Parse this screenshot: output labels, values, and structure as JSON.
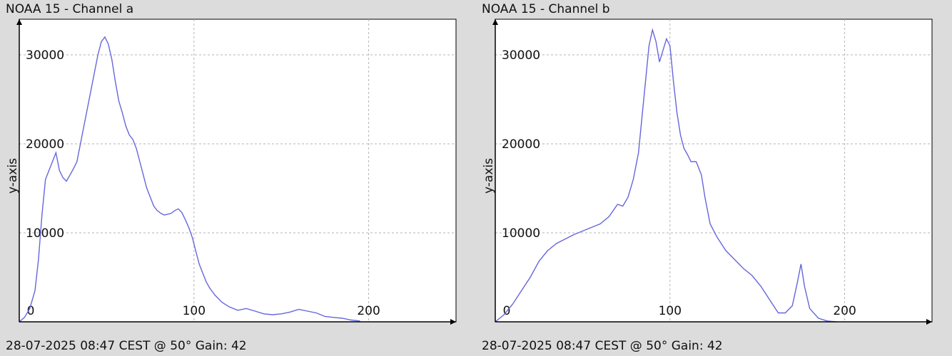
{
  "chart_data": [
    {
      "type": "line",
      "title": "NOAA 15 - Channel a",
      "footer": "28-07-2025 08:47 CEST @ 50° Gain: 42",
      "xlabel": "",
      "ylabel": "y-axis",
      "xlim": [
        0,
        250
      ],
      "ylim": [
        0,
        34000
      ],
      "xticks": [
        0,
        100,
        200
      ],
      "xtick_labels": [
        "0",
        "100",
        "200"
      ],
      "yticks": [
        10000,
        20000,
        30000
      ],
      "ytick_labels": [
        "10000",
        "20000",
        "30000"
      ],
      "grid": true,
      "line_color": "#6666dd",
      "series": [
        {
          "x": [
            0,
            3,
            6,
            9,
            11,
            13,
            15,
            17,
            19,
            21,
            23,
            25,
            27,
            29,
            31,
            33,
            35,
            37,
            39,
            41,
            43,
            45,
            47,
            49,
            51,
            53,
            55,
            57,
            59,
            61,
            63,
            65,
            67,
            69,
            71,
            73,
            75,
            77,
            79,
            81,
            83,
            85,
            87,
            89,
            91,
            93,
            95,
            97,
            99,
            101,
            103,
            105,
            107,
            109,
            112,
            116,
            120,
            125,
            130,
            135,
            140,
            145,
            150,
            155,
            160,
            165,
            170,
            175,
            180,
            185,
            190,
            195
          ],
          "y": [
            0,
            500,
            1500,
            3500,
            7000,
            12000,
            16000,
            17000,
            18000,
            19000,
            17000,
            16200,
            15800,
            16500,
            17200,
            18000,
            20000,
            22000,
            24000,
            26000,
            28000,
            30000,
            31500,
            32000,
            31200,
            29500,
            27000,
            24800,
            23500,
            22000,
            21000,
            20500,
            19500,
            18000,
            16500,
            15000,
            14000,
            13000,
            12500,
            12200,
            12000,
            12100,
            12200,
            12500,
            12700,
            12300,
            11500,
            10600,
            9500,
            8000,
            6500,
            5500,
            4500,
            3800,
            3000,
            2200,
            1700,
            1300,
            1500,
            1200,
            900,
            800,
            900,
            1100,
            1400,
            1200,
            1000,
            600,
            500,
            400,
            200,
            100
          ]
        }
      ]
    },
    {
      "type": "line",
      "title": "NOAA 15 - Channel b",
      "footer": "28-07-2025 08:47 CEST @ 50° Gain: 42",
      "xlabel": "",
      "ylabel": "y-axis",
      "xlim": [
        0,
        250
      ],
      "ylim": [
        0,
        34000
      ],
      "xticks": [
        0,
        100,
        200
      ],
      "xtick_labels": [
        "0",
        "100",
        "200"
      ],
      "yticks": [
        10000,
        20000,
        30000
      ],
      "ytick_labels": [
        "10000",
        "20000",
        "30000"
      ],
      "grid": true,
      "line_color": "#6666dd",
      "series": [
        {
          "x": [
            0,
            5,
            10,
            15,
            20,
            25,
            30,
            35,
            40,
            45,
            50,
            55,
            60,
            65,
            70,
            73,
            76,
            79,
            82,
            84,
            86,
            88,
            90,
            92,
            94,
            96,
            98,
            100,
            102,
            104,
            106,
            108,
            110,
            112,
            115,
            118,
            120,
            123,
            127,
            132,
            137,
            142,
            147,
            152,
            157,
            162,
            166,
            170,
            173,
            175,
            177,
            180,
            185,
            190,
            195
          ],
          "y": [
            0,
            800,
            2000,
            3500,
            5000,
            6800,
            8000,
            8800,
            9300,
            9800,
            10200,
            10600,
            11000,
            11800,
            13200,
            13000,
            14000,
            16000,
            19000,
            23000,
            27000,
            31000,
            32800,
            31500,
            29200,
            30500,
            31800,
            31000,
            27000,
            23500,
            21000,
            19500,
            18800,
            18000,
            18000,
            16500,
            14000,
            11000,
            9500,
            8000,
            7000,
            6000,
            5200,
            4000,
            2500,
            1000,
            1000,
            1800,
            4500,
            6500,
            4000,
            1500,
            400,
            100,
            0
          ]
        }
      ]
    }
  ]
}
